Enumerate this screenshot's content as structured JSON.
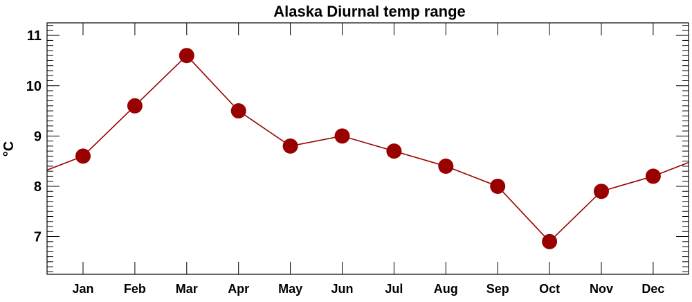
{
  "chart_data": {
    "type": "line",
    "title": "Alaska Diurnal temp range",
    "xlabel": "",
    "ylabel": "°C",
    "categories": [
      "Jan",
      "Feb",
      "Mar",
      "Apr",
      "May",
      "Jun",
      "Jul",
      "Aug",
      "Sep",
      "Oct",
      "Nov",
      "Dec"
    ],
    "series": [
      {
        "name": "Diurnal temp range",
        "values": [
          8.6,
          9.6,
          10.6,
          9.5,
          8.8,
          9.0,
          8.7,
          8.4,
          8.0,
          6.9,
          7.9,
          8.2
        ],
        "color": "#990000"
      }
    ],
    "ylim": [
      6.25,
      11.25
    ],
    "yticks": [
      "7",
      "8",
      "9",
      "10",
      "11"
    ],
    "y_minor_step": 0.1,
    "grid": false,
    "cyclic_wrap": true
  }
}
